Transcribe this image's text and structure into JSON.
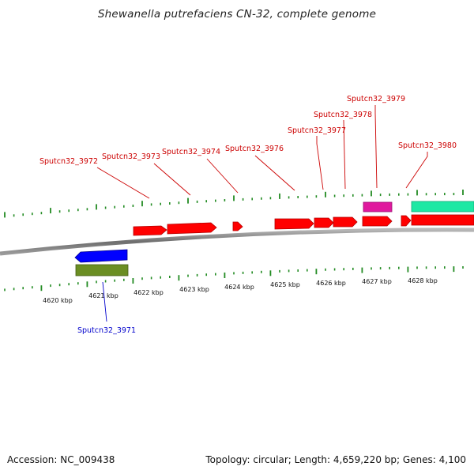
{
  "title": "Shewanella putrefaciens CN-32, complete genome",
  "footer": {
    "accession": "Accession: NC_009438",
    "summary": "Topology: circular; Length: 4,659,220 bp; Genes: 4,100"
  },
  "axis": {
    "unit": "kbp",
    "ticks": [
      {
        "value": 4620,
        "label": "4620 kbp"
      },
      {
        "value": 4621,
        "label": "4621 kbp"
      },
      {
        "value": 4622,
        "label": "4622 kbp"
      },
      {
        "value": 4623,
        "label": "4623 kbp"
      },
      {
        "value": 4624,
        "label": "4624 kbp"
      },
      {
        "value": 4625,
        "label": "4625 kbp"
      },
      {
        "value": 4626,
        "label": "4626 kbp"
      },
      {
        "value": 4627,
        "label": "4627 kbp"
      },
      {
        "value": 4628,
        "label": "4628 kbp"
      }
    ]
  },
  "colors": {
    "forward_cds": "#ff0000",
    "reverse_cds": "#0000ff",
    "reverse_feature": "#6b8e23",
    "pink_feature": "#e0199e",
    "teal_feature": "#1de8a4",
    "tick": "#228b22",
    "backbone": "#7a7a7a",
    "label_forward": "#cc0000",
    "label_reverse": "#0000cc"
  },
  "gene_labels": {
    "forward": [
      {
        "text": "Sputcn32_3972"
      },
      {
        "text": "Sputcn32_3973"
      },
      {
        "text": "Sputcn32_3974"
      },
      {
        "text": "Sputcn32_3976"
      },
      {
        "text": "Sputcn32_3977"
      },
      {
        "text": "Sputcn32_3978"
      },
      {
        "text": "Sputcn32_3979"
      },
      {
        "text": "Sputcn32_3980"
      }
    ],
    "reverse": [
      {
        "text": "Sputcn32_3971"
      }
    ]
  }
}
